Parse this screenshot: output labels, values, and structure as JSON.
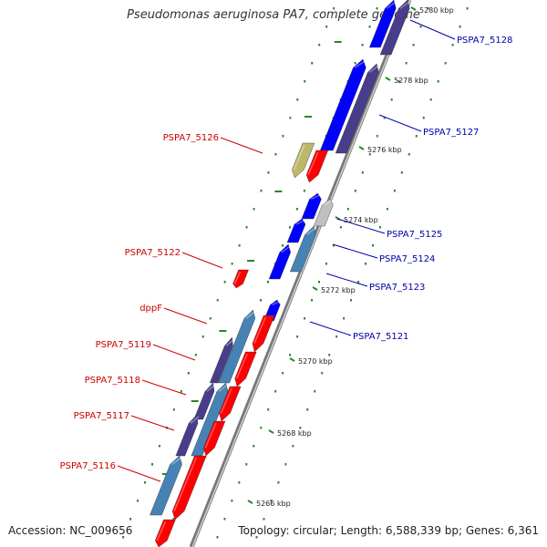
{
  "title": "Pseudomonas aeruginosa PA7, complete genome",
  "footer": {
    "accession": "Accession: NC_009656",
    "topology": "Topology: circular; Length: 6,588,339 bp; Genes: 6,361"
  },
  "colors": {
    "forward": "#ff0000",
    "reverse": "#0000ff",
    "steelblue": "#4682b4",
    "darkslate": "#483d8b",
    "olive": "#bdb76b",
    "gray": "#c0c0c0",
    "backbone": "#999999",
    "tick": "#228b22",
    "label_left": "#cc0000",
    "label_right": "#0000aa"
  },
  "scale_labels": [
    {
      "kbp": 5280,
      "text": "5280 kbp"
    },
    {
      "kbp": 5278,
      "text": "5278 kbp"
    },
    {
      "kbp": 5276,
      "text": "5276 kbp"
    },
    {
      "kbp": 5274,
      "text": "5274 kbp"
    },
    {
      "kbp": 5272,
      "text": "5272 kbp"
    },
    {
      "kbp": 5270,
      "text": "5270 kbp"
    },
    {
      "kbp": 5268,
      "text": "5268 kbp"
    },
    {
      "kbp": 5266,
      "text": "5266 kbp"
    }
  ],
  "genes_right": [
    {
      "label": "PSPA7_5128"
    },
    {
      "label": "PSPA7_5127"
    },
    {
      "label": "PSPA7_5125"
    },
    {
      "label": "PSPA7_5124"
    },
    {
      "label": "PSPA7_5123"
    },
    {
      "label": "PSPA7_5121"
    }
  ],
  "genes_left": [
    {
      "label": "PSPA7_5126"
    },
    {
      "label": "PSPA7_5122"
    },
    {
      "label": "dppF"
    },
    {
      "label": "PSPA7_5119"
    },
    {
      "label": "PSPA7_5118"
    },
    {
      "label": "PSPA7_5117"
    },
    {
      "label": "PSPA7_5116"
    }
  ]
}
